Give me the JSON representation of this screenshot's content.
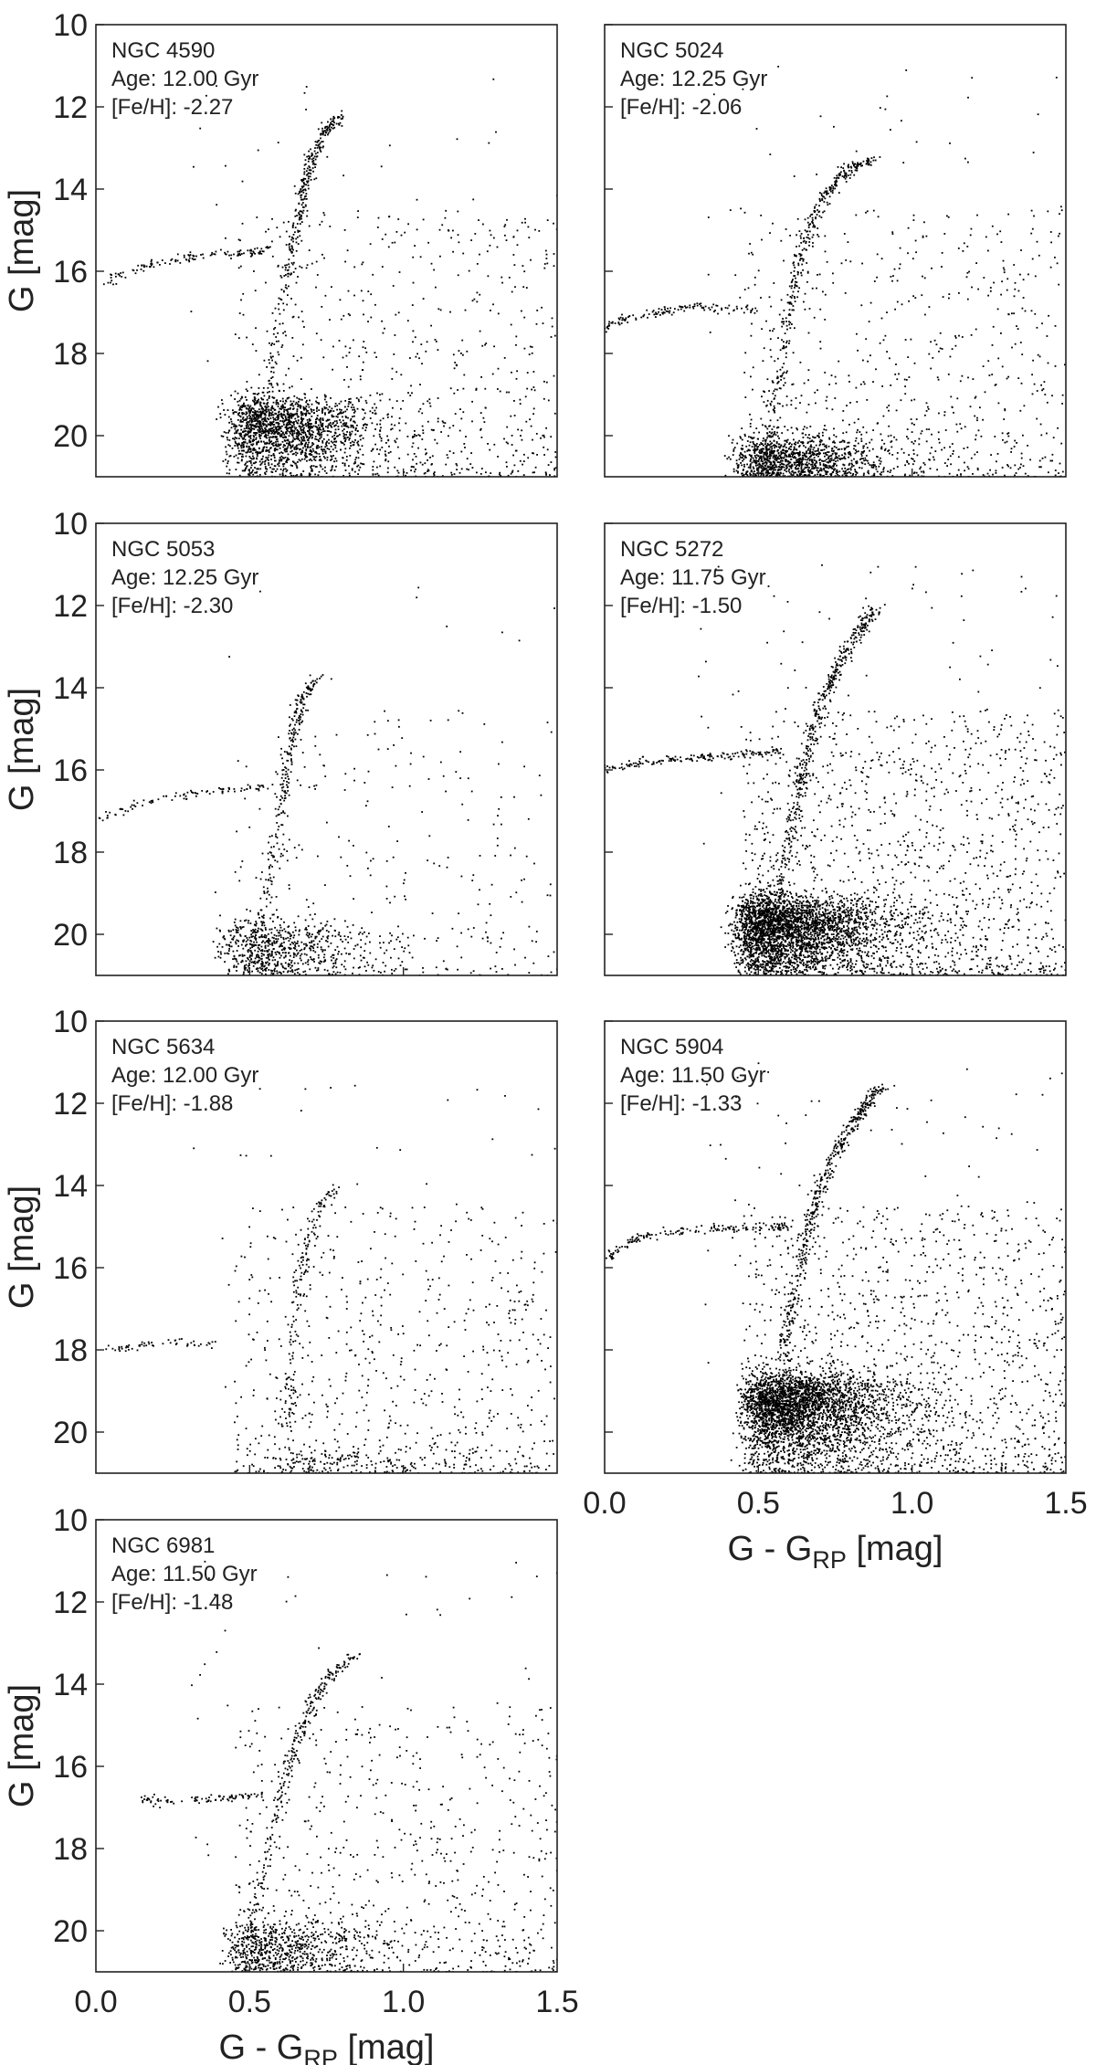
{
  "chart_data": [
    {
      "type": "scatter",
      "cluster": "NGC 4590",
      "age_text": "Age: 12.00 Gyr",
      "feh_text": "[Fe/H]: -2.27",
      "xlabel": "",
      "ylabel": "G [mag]",
      "xlim": [
        0.0,
        1.5
      ],
      "ylim": [
        21.0,
        10.0
      ],
      "x_ticks": [],
      "y_ticks": [
        "10",
        "12",
        "14",
        "16",
        "18",
        "20"
      ],
      "point_color": "#000000",
      "features": {
        "rgb_points": [
          [
            0.5,
            20.2
          ],
          [
            0.55,
            19.2
          ],
          [
            0.58,
            18.0
          ],
          [
            0.61,
            16.6
          ],
          [
            0.64,
            15.3
          ],
          [
            0.67,
            14.2
          ],
          [
            0.7,
            13.3
          ],
          [
            0.74,
            12.6
          ],
          [
            0.8,
            12.2
          ]
        ],
        "hb_points": [
          [
            0.02,
            16.3
          ],
          [
            0.1,
            16.0
          ],
          [
            0.2,
            15.8
          ],
          [
            0.3,
            15.65
          ],
          [
            0.4,
            15.6
          ],
          [
            0.5,
            15.55
          ],
          [
            0.58,
            15.4
          ]
        ],
        "turnoff": [
          0.46,
          19.3
        ],
        "field_density": "moderate",
        "core_density": "dense"
      }
    },
    {
      "type": "scatter",
      "cluster": "NGC 5024",
      "age_text": "Age: 12.25 Gyr",
      "feh_text": "[Fe/H]: -2.06",
      "xlabel": "",
      "ylabel": "",
      "xlim": [
        0.0,
        1.5
      ],
      "ylim": [
        21.0,
        10.0
      ],
      "x_ticks": [],
      "y_ticks": [],
      "point_color": "#000000",
      "features": {
        "rgb_points": [
          [
            0.52,
            20.3
          ],
          [
            0.55,
            19.2
          ],
          [
            0.58,
            18.0
          ],
          [
            0.61,
            16.7
          ],
          [
            0.64,
            15.6
          ],
          [
            0.68,
            14.7
          ],
          [
            0.73,
            14.0
          ],
          [
            0.8,
            13.5
          ],
          [
            0.88,
            13.3
          ]
        ],
        "hb_points": [
          [
            0.0,
            17.4
          ],
          [
            0.05,
            17.2
          ],
          [
            0.12,
            17.05
          ],
          [
            0.2,
            16.95
          ],
          [
            0.3,
            16.85
          ],
          [
            0.4,
            16.9
          ],
          [
            0.5,
            16.95
          ]
        ],
        "turnoff": [
          0.45,
          20.2
        ],
        "field_density": "moderate",
        "core_density": "dense"
      }
    },
    {
      "type": "scatter",
      "cluster": "NGC 5053",
      "age_text": "Age: 12.25 Gyr",
      "feh_text": "[Fe/H]: -2.30",
      "xlabel": "",
      "ylabel": "G [mag]",
      "xlim": [
        0.0,
        1.5
      ],
      "ylim": [
        21.0,
        10.0
      ],
      "x_ticks": [],
      "y_ticks": [
        "10",
        "12",
        "14",
        "16",
        "18",
        "20"
      ],
      "point_color": "#000000",
      "features": {
        "rgb_points": [
          [
            0.52,
            20.2
          ],
          [
            0.55,
            19.2
          ],
          [
            0.58,
            18.0
          ],
          [
            0.6,
            17.0
          ],
          [
            0.62,
            16.0
          ],
          [
            0.64,
            15.0
          ],
          [
            0.67,
            14.3
          ],
          [
            0.72,
            13.7
          ]
        ],
        "hb_points": [
          [
            0.0,
            17.2
          ],
          [
            0.08,
            17.0
          ],
          [
            0.15,
            16.8
          ],
          [
            0.25,
            16.65
          ],
          [
            0.35,
            16.55
          ],
          [
            0.45,
            16.45
          ],
          [
            0.55,
            16.4
          ]
        ],
        "turnoff": [
          0.44,
          19.9
        ],
        "field_density": "sparse",
        "core_density": "moderate"
      }
    },
    {
      "type": "scatter",
      "cluster": "NGC 5272",
      "age_text": "Age: 11.75 Gyr",
      "feh_text": "[Fe/H]: -1.50",
      "xlabel": "",
      "ylabel": "",
      "xlim": [
        0.0,
        1.5
      ],
      "ylim": [
        21.0,
        10.0
      ],
      "x_ticks": [],
      "y_ticks": [],
      "point_color": "#000000",
      "features": {
        "rgb_points": [
          [
            0.55,
            20.0
          ],
          [
            0.57,
            19.0
          ],
          [
            0.6,
            17.8
          ],
          [
            0.63,
            16.6
          ],
          [
            0.66,
            15.5
          ],
          [
            0.7,
            14.5
          ],
          [
            0.75,
            13.6
          ],
          [
            0.81,
            12.8
          ],
          [
            0.88,
            12.1
          ]
        ],
        "hb_points": [
          [
            0.0,
            16.0
          ],
          [
            0.1,
            15.85
          ],
          [
            0.2,
            15.75
          ],
          [
            0.3,
            15.7
          ],
          [
            0.4,
            15.65
          ],
          [
            0.5,
            15.6
          ],
          [
            0.58,
            15.55
          ]
        ],
        "turnoff": [
          0.45,
          19.3
        ],
        "field_density": "dense",
        "core_density": "very-dense"
      }
    },
    {
      "type": "scatter",
      "cluster": "NGC 5634",
      "age_text": "Age: 12.00 Gyr",
      "feh_text": "[Fe/H]: -1.88",
      "xlabel": "",
      "ylabel": "G [mag]",
      "xlim": [
        0.0,
        1.5
      ],
      "ylim": [
        21.0,
        10.0
      ],
      "x_ticks": [],
      "y_ticks": [
        "10",
        "12",
        "14",
        "16",
        "18",
        "20"
      ],
      "point_color": "#000000",
      "features": {
        "rgb_points": [
          [
            0.62,
            20.2
          ],
          [
            0.63,
            19.0
          ],
          [
            0.64,
            17.8
          ],
          [
            0.66,
            16.6
          ],
          [
            0.68,
            15.6
          ],
          [
            0.72,
            14.7
          ],
          [
            0.78,
            14.0
          ]
        ],
        "hb_points": [
          [
            0.05,
            18.0
          ],
          [
            0.12,
            17.9
          ],
          [
            0.2,
            17.85
          ],
          [
            0.3,
            17.8
          ],
          [
            0.38,
            17.9
          ]
        ],
        "turnoff": [
          0.62,
          20.6
        ],
        "field_density": "moderate",
        "core_density": "sparse"
      }
    },
    {
      "type": "scatter",
      "cluster": "NGC 5904",
      "age_text": "Age: 11.50 Gyr",
      "feh_text": "[Fe/H]: -1.33",
      "xlabel": "G - G_RP [mag]",
      "ylabel": "",
      "xlim": [
        0.0,
        1.5
      ],
      "ylim": [
        21.0,
        10.0
      ],
      "x_ticks": [
        "0.0",
        "0.5",
        "1.0",
        "1.5"
      ],
      "y_ticks": [],
      "point_color": "#000000",
      "features": {
        "rgb_points": [
          [
            0.56,
            19.6
          ],
          [
            0.58,
            18.5
          ],
          [
            0.6,
            17.4
          ],
          [
            0.63,
            16.2
          ],
          [
            0.66,
            15.1
          ],
          [
            0.7,
            14.1
          ],
          [
            0.75,
            13.2
          ],
          [
            0.82,
            12.3
          ],
          [
            0.9,
            11.6
          ]
        ],
        "hb_points": [
          [
            0.0,
            15.8
          ],
          [
            0.08,
            15.4
          ],
          [
            0.15,
            15.2
          ],
          [
            0.25,
            15.1
          ],
          [
            0.35,
            15.05
          ],
          [
            0.45,
            15.05
          ],
          [
            0.55,
            15.0
          ],
          [
            0.6,
            15.0
          ]
        ],
        "turnoff": [
          0.48,
          18.8
        ],
        "field_density": "dense",
        "core_density": "very-dense"
      }
    },
    {
      "type": "scatter",
      "cluster": "NGC 6981",
      "age_text": "Age: 11.50 Gyr",
      "feh_text": "[Fe/H]: -1.48",
      "xlabel": "G - G_RP [mag]",
      "ylabel": "G [mag]",
      "xlim": [
        0.0,
        1.5
      ],
      "ylim": [
        21.0,
        10.0
      ],
      "x_ticks": [
        "0.0",
        "0.5",
        "1.0",
        "1.5"
      ],
      "y_ticks": [
        "10",
        "12",
        "14",
        "16",
        "18",
        "20"
      ],
      "point_color": "#000000",
      "features": {
        "rgb_points": [
          [
            0.5,
            20.0
          ],
          [
            0.53,
            19.0
          ],
          [
            0.56,
            18.0
          ],
          [
            0.59,
            17.0
          ],
          [
            0.62,
            16.1
          ],
          [
            0.66,
            15.2
          ],
          [
            0.7,
            14.5
          ],
          [
            0.76,
            13.8
          ],
          [
            0.85,
            13.3
          ]
        ],
        "hb_points": [
          [
            0.15,
            16.8
          ],
          [
            0.22,
            16.85
          ],
          [
            0.35,
            16.8
          ],
          [
            0.45,
            16.75
          ],
          [
            0.55,
            16.7
          ]
        ],
        "turnoff": [
          0.45,
          20.0
        ],
        "field_density": "moderate",
        "core_density": "moderate"
      }
    }
  ]
}
